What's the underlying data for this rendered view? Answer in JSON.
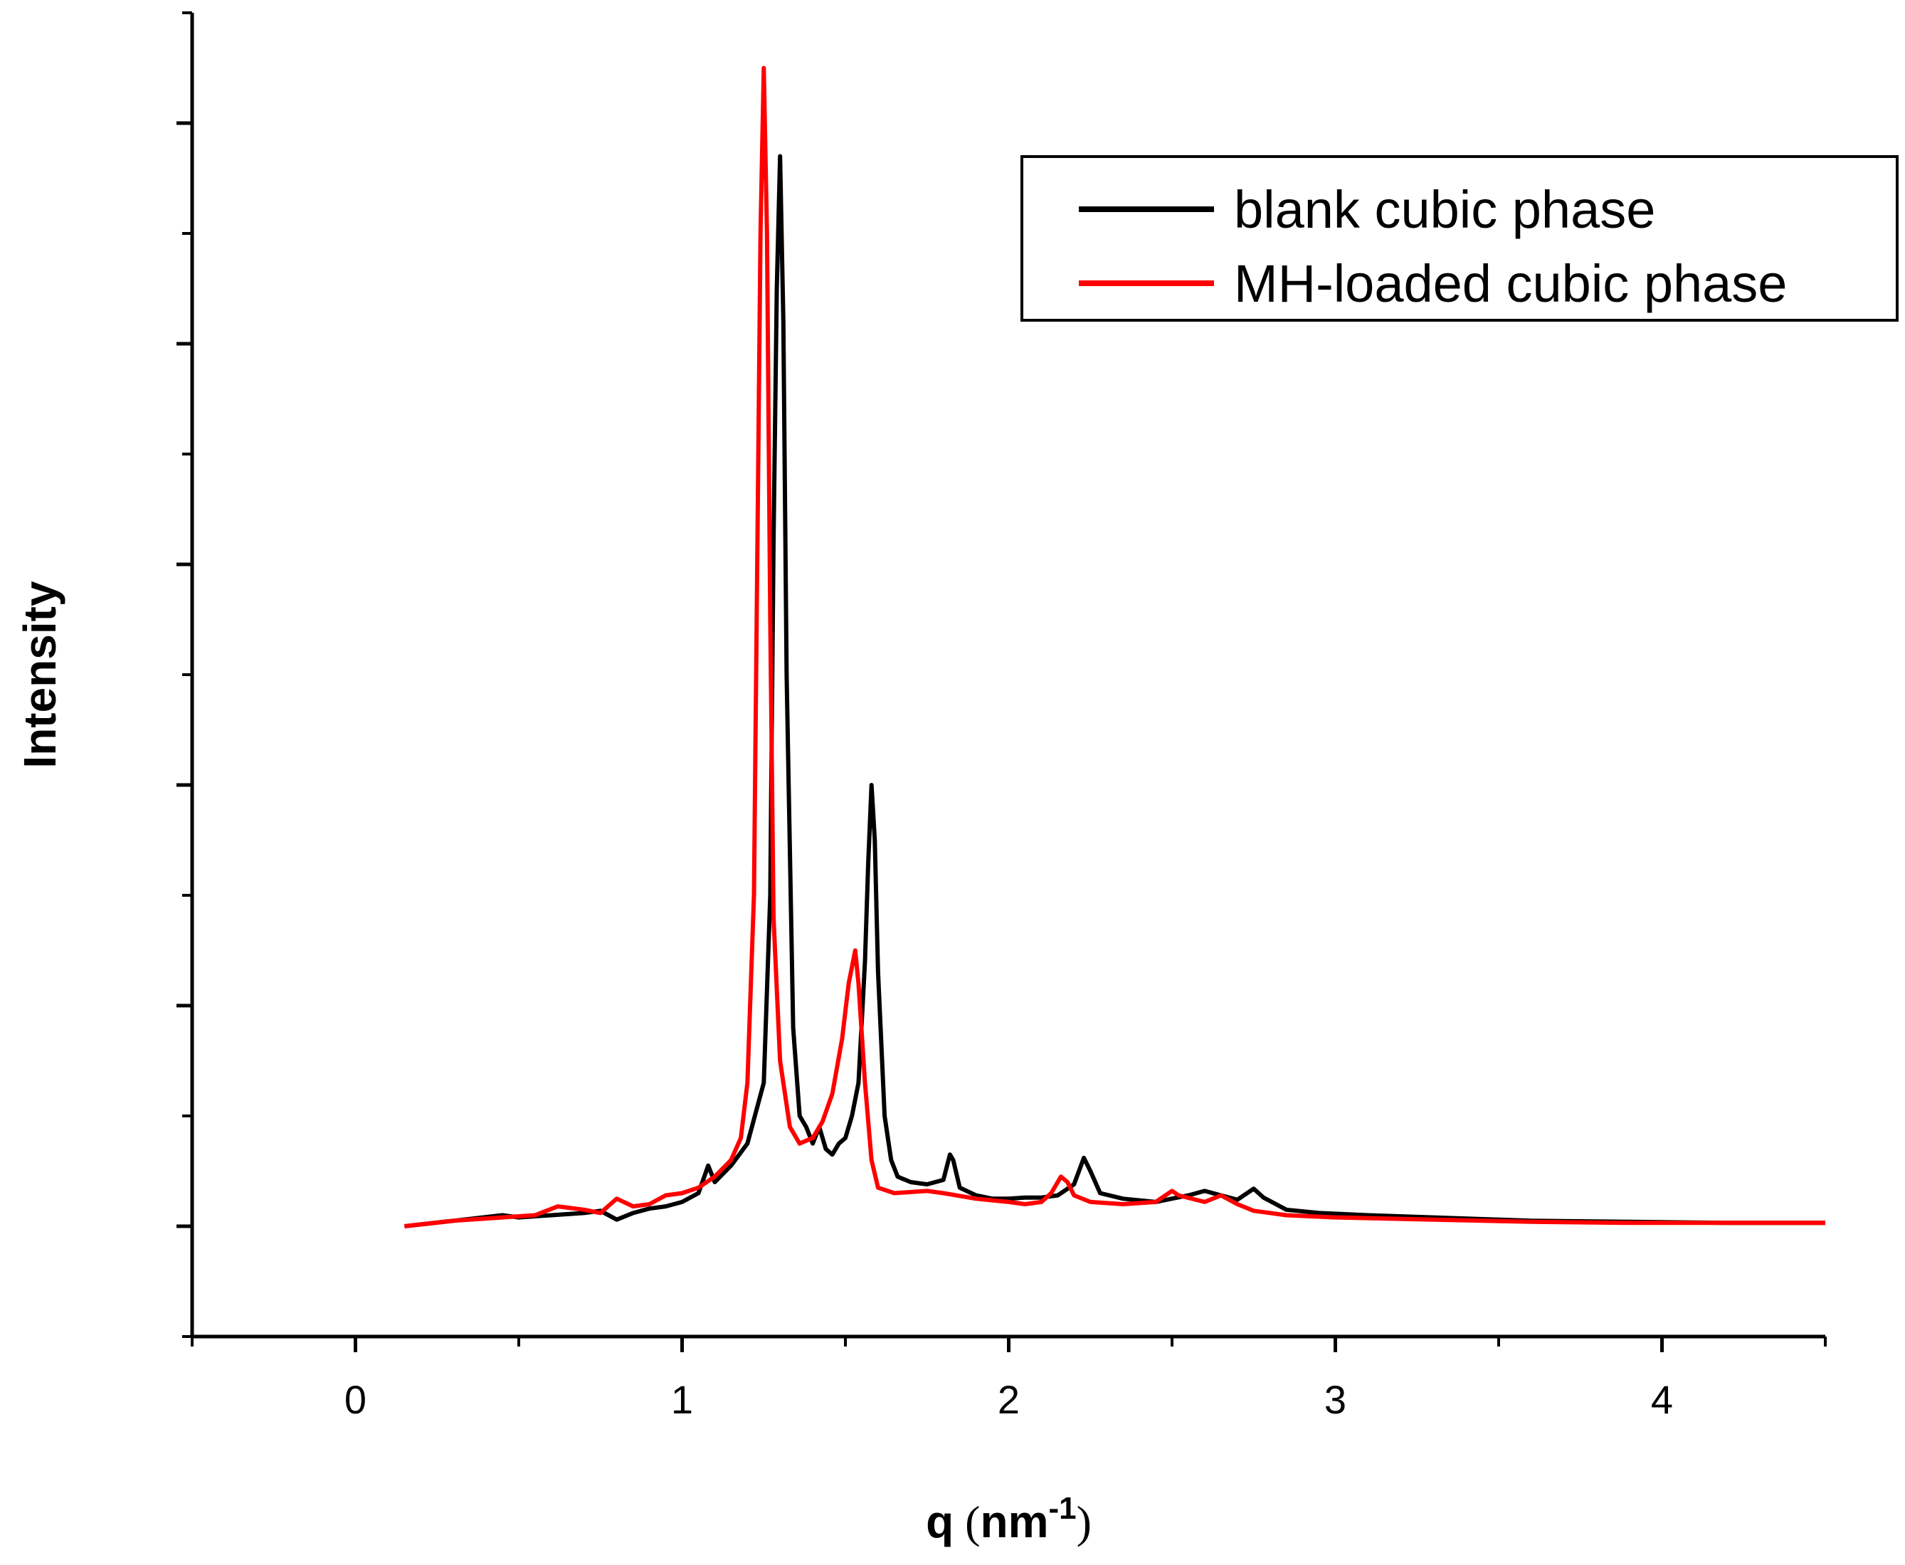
{
  "chart_data": {
    "type": "line",
    "title": "",
    "xlabel": "q",
    "xlabel_unit_base": "nm",
    "xlabel_unit_exp": "-1",
    "ylabel": "Intensity",
    "xlim": [
      -0.5,
      4.5
    ],
    "ylim": [
      -0.1,
      1.1
    ],
    "x_ticks": [
      0,
      1,
      2,
      3,
      4
    ],
    "x_tick_labels": [
      "0",
      "1",
      "2",
      "3",
      "4"
    ],
    "x_minor_ticks": [
      -0.5,
      0.5,
      1.5,
      2.5,
      3.5,
      4.5
    ],
    "y_ticks": [
      0,
      0.2,
      0.4,
      0.6,
      0.8,
      1.0
    ],
    "y_minor_ticks": [
      -0.1,
      0.1,
      0.3,
      0.5,
      0.7,
      0.9,
      1.1
    ],
    "legend_position": "top-right",
    "grid": false,
    "series": [
      {
        "name": "blank cubic phase",
        "color": "#000000",
        "points": [
          [
            0.15,
            0.0
          ],
          [
            0.3,
            0.005
          ],
          [
            0.45,
            0.01
          ],
          [
            0.5,
            0.008
          ],
          [
            0.6,
            0.01
          ],
          [
            0.7,
            0.012
          ],
          [
            0.75,
            0.014
          ],
          [
            0.8,
            0.006
          ],
          [
            0.85,
            0.012
          ],
          [
            0.9,
            0.016
          ],
          [
            0.95,
            0.018
          ],
          [
            1.0,
            0.022
          ],
          [
            1.05,
            0.03
          ],
          [
            1.08,
            0.055
          ],
          [
            1.1,
            0.04
          ],
          [
            1.15,
            0.055
          ],
          [
            1.2,
            0.075
          ],
          [
            1.25,
            0.13
          ],
          [
            1.27,
            0.3
          ],
          [
            1.28,
            0.62
          ],
          [
            1.29,
            0.85
          ],
          [
            1.3,
            0.97
          ],
          [
            1.31,
            0.82
          ],
          [
            1.32,
            0.5
          ],
          [
            1.34,
            0.18
          ],
          [
            1.36,
            0.1
          ],
          [
            1.38,
            0.09
          ],
          [
            1.4,
            0.075
          ],
          [
            1.42,
            0.09
          ],
          [
            1.44,
            0.07
          ],
          [
            1.46,
            0.065
          ],
          [
            1.48,
            0.075
          ],
          [
            1.5,
            0.08
          ],
          [
            1.52,
            0.1
          ],
          [
            1.54,
            0.13
          ],
          [
            1.56,
            0.24
          ],
          [
            1.57,
            0.33
          ],
          [
            1.58,
            0.4
          ],
          [
            1.59,
            0.35
          ],
          [
            1.6,
            0.23
          ],
          [
            1.62,
            0.1
          ],
          [
            1.64,
            0.06
          ],
          [
            1.66,
            0.045
          ],
          [
            1.7,
            0.04
          ],
          [
            1.75,
            0.038
          ],
          [
            1.8,
            0.042
          ],
          [
            1.82,
            0.065
          ],
          [
            1.83,
            0.06
          ],
          [
            1.85,
            0.035
          ],
          [
            1.9,
            0.028
          ],
          [
            1.95,
            0.025
          ],
          [
            2.0,
            0.025
          ],
          [
            2.05,
            0.026
          ],
          [
            2.1,
            0.026
          ],
          [
            2.15,
            0.028
          ],
          [
            2.2,
            0.038
          ],
          [
            2.23,
            0.062
          ],
          [
            2.25,
            0.05
          ],
          [
            2.28,
            0.03
          ],
          [
            2.35,
            0.025
          ],
          [
            2.45,
            0.022
          ],
          [
            2.55,
            0.028
          ],
          [
            2.6,
            0.032
          ],
          [
            2.65,
            0.028
          ],
          [
            2.7,
            0.024
          ],
          [
            2.75,
            0.034
          ],
          [
            2.78,
            0.026
          ],
          [
            2.85,
            0.015
          ],
          [
            2.95,
            0.012
          ],
          [
            3.1,
            0.01
          ],
          [
            3.3,
            0.008
          ],
          [
            3.6,
            0.005
          ],
          [
            3.9,
            0.004
          ],
          [
            4.2,
            0.003
          ],
          [
            4.5,
            0.003
          ]
        ]
      },
      {
        "name": "MH-loaded cubic phase",
        "color": "#ff0000",
        "points": [
          [
            0.15,
            0.0
          ],
          [
            0.3,
            0.005
          ],
          [
            0.45,
            0.008
          ],
          [
            0.55,
            0.01
          ],
          [
            0.62,
            0.018
          ],
          [
            0.7,
            0.015
          ],
          [
            0.75,
            0.012
          ],
          [
            0.8,
            0.025
          ],
          [
            0.85,
            0.018
          ],
          [
            0.9,
            0.02
          ],
          [
            0.95,
            0.028
          ],
          [
            1.0,
            0.03
          ],
          [
            1.05,
            0.035
          ],
          [
            1.1,
            0.045
          ],
          [
            1.15,
            0.06
          ],
          [
            1.18,
            0.08
          ],
          [
            1.2,
            0.13
          ],
          [
            1.22,
            0.3
          ],
          [
            1.23,
            0.6
          ],
          [
            1.24,
            0.9
          ],
          [
            1.25,
            1.05
          ],
          [
            1.26,
            0.9
          ],
          [
            1.27,
            0.55
          ],
          [
            1.28,
            0.28
          ],
          [
            1.3,
            0.15
          ],
          [
            1.33,
            0.09
          ],
          [
            1.36,
            0.075
          ],
          [
            1.4,
            0.08
          ],
          [
            1.43,
            0.095
          ],
          [
            1.46,
            0.12
          ],
          [
            1.49,
            0.17
          ],
          [
            1.51,
            0.22
          ],
          [
            1.53,
            0.25
          ],
          [
            1.54,
            0.22
          ],
          [
            1.56,
            0.13
          ],
          [
            1.58,
            0.06
          ],
          [
            1.6,
            0.035
          ],
          [
            1.65,
            0.03
          ],
          [
            1.75,
            0.032
          ],
          [
            1.8,
            0.03
          ],
          [
            1.9,
            0.025
          ],
          [
            2.0,
            0.022
          ],
          [
            2.05,
            0.02
          ],
          [
            2.1,
            0.022
          ],
          [
            2.13,
            0.03
          ],
          [
            2.16,
            0.045
          ],
          [
            2.18,
            0.04
          ],
          [
            2.2,
            0.028
          ],
          [
            2.25,
            0.022
          ],
          [
            2.35,
            0.02
          ],
          [
            2.45,
            0.022
          ],
          [
            2.5,
            0.032
          ],
          [
            2.52,
            0.028
          ],
          [
            2.6,
            0.022
          ],
          [
            2.65,
            0.028
          ],
          [
            2.7,
            0.02
          ],
          [
            2.75,
            0.014
          ],
          [
            2.85,
            0.01
          ],
          [
            3.0,
            0.008
          ],
          [
            3.3,
            0.006
          ],
          [
            3.6,
            0.004
          ],
          [
            3.9,
            0.003
          ],
          [
            4.2,
            0.003
          ],
          [
            4.5,
            0.003
          ]
        ]
      }
    ]
  }
}
